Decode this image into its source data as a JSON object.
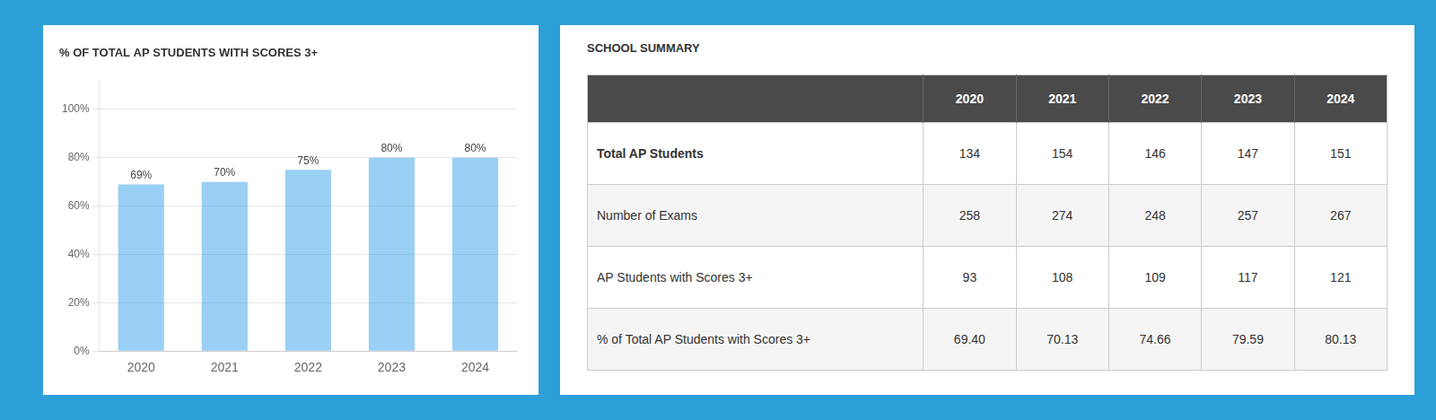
{
  "chart_data": [
    {
      "type": "bar",
      "title": "% OF TOTAL AP STUDENTS WITH SCORES 3+",
      "categories": [
        "2020",
        "2021",
        "2022",
        "2023",
        "2024"
      ],
      "values": [
        69,
        70,
        75,
        80,
        80
      ],
      "value_labels": [
        "69%",
        "70%",
        "75%",
        "80%",
        "80%"
      ],
      "data_labels": true,
      "ylim": [
        0,
        112
      ],
      "yticks": [
        {
          "value": 0,
          "label": "0%"
        },
        {
          "value": 20,
          "label": "20%"
        },
        {
          "value": 40,
          "label": "40%"
        },
        {
          "value": 60,
          "label": "60%"
        },
        {
          "value": 80,
          "label": "80%"
        },
        {
          "value": 100,
          "label": "100%"
        }
      ],
      "grid": true
    },
    {
      "type": "table",
      "title": "SCHOOL SUMMARY",
      "categories": [
        "2020",
        "2021",
        "2022",
        "2023",
        "2024"
      ],
      "series": [
        {
          "name": "Total AP Students",
          "values": [
            134,
            154,
            146,
            147,
            151
          ]
        },
        {
          "name": "Number of Exams",
          "values": [
            258,
            274,
            248,
            257,
            267
          ]
        },
        {
          "name": "AP Students with Scores 3+",
          "values": [
            93,
            108,
            109,
            117,
            121
          ]
        },
        {
          "name": "% of Total AP Students with Scores 3+",
          "values": [
            69.4,
            70.13,
            74.66,
            79.59,
            80.13
          ],
          "value_labels": [
            "69.40",
            "70.13",
            "74.66",
            "79.59",
            "80.13"
          ]
        }
      ]
    }
  ]
}
